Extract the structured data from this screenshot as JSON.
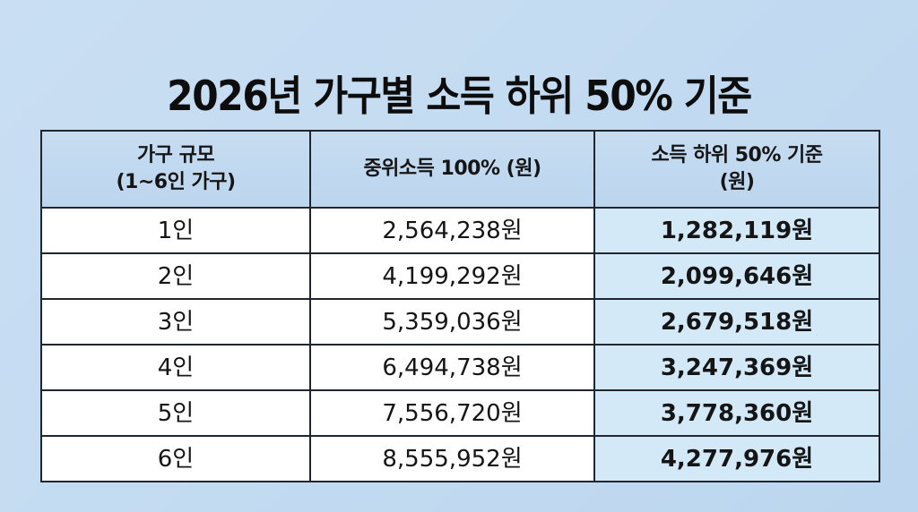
{
  "title": "2026년 가구별 소득 하위 50% 기준",
  "table": {
    "headers": [
      {
        "line1": "가구 규모",
        "line2": "(1~6인 가구)"
      },
      {
        "line1": "중위소득 100% (원)",
        "line2": ""
      },
      {
        "line1": "소득 하위 50% 기준",
        "line2": "(원)"
      }
    ],
    "rows": [
      {
        "size": "1인",
        "median": "2,564,238원",
        "half": "1,282,119원"
      },
      {
        "size": "2인",
        "median": "4,199,292원",
        "half": "2,099,646원"
      },
      {
        "size": "3인",
        "median": "5,359,036원",
        "half": "2,679,518원"
      },
      {
        "size": "4인",
        "median": "6,494,738원",
        "half": "3,247,369원"
      },
      {
        "size": "5인",
        "median": "7,556,720원",
        "half": "3,778,360원"
      },
      {
        "size": "6인",
        "median": "8,555,952원",
        "half": "4,277,976원"
      }
    ]
  },
  "colors": {
    "background": "#c3dbf1",
    "header_bg": "#c2d9ef",
    "highlight_col_bg": "#d3e9f8",
    "border": "#1f2630",
    "text": "#111111"
  }
}
